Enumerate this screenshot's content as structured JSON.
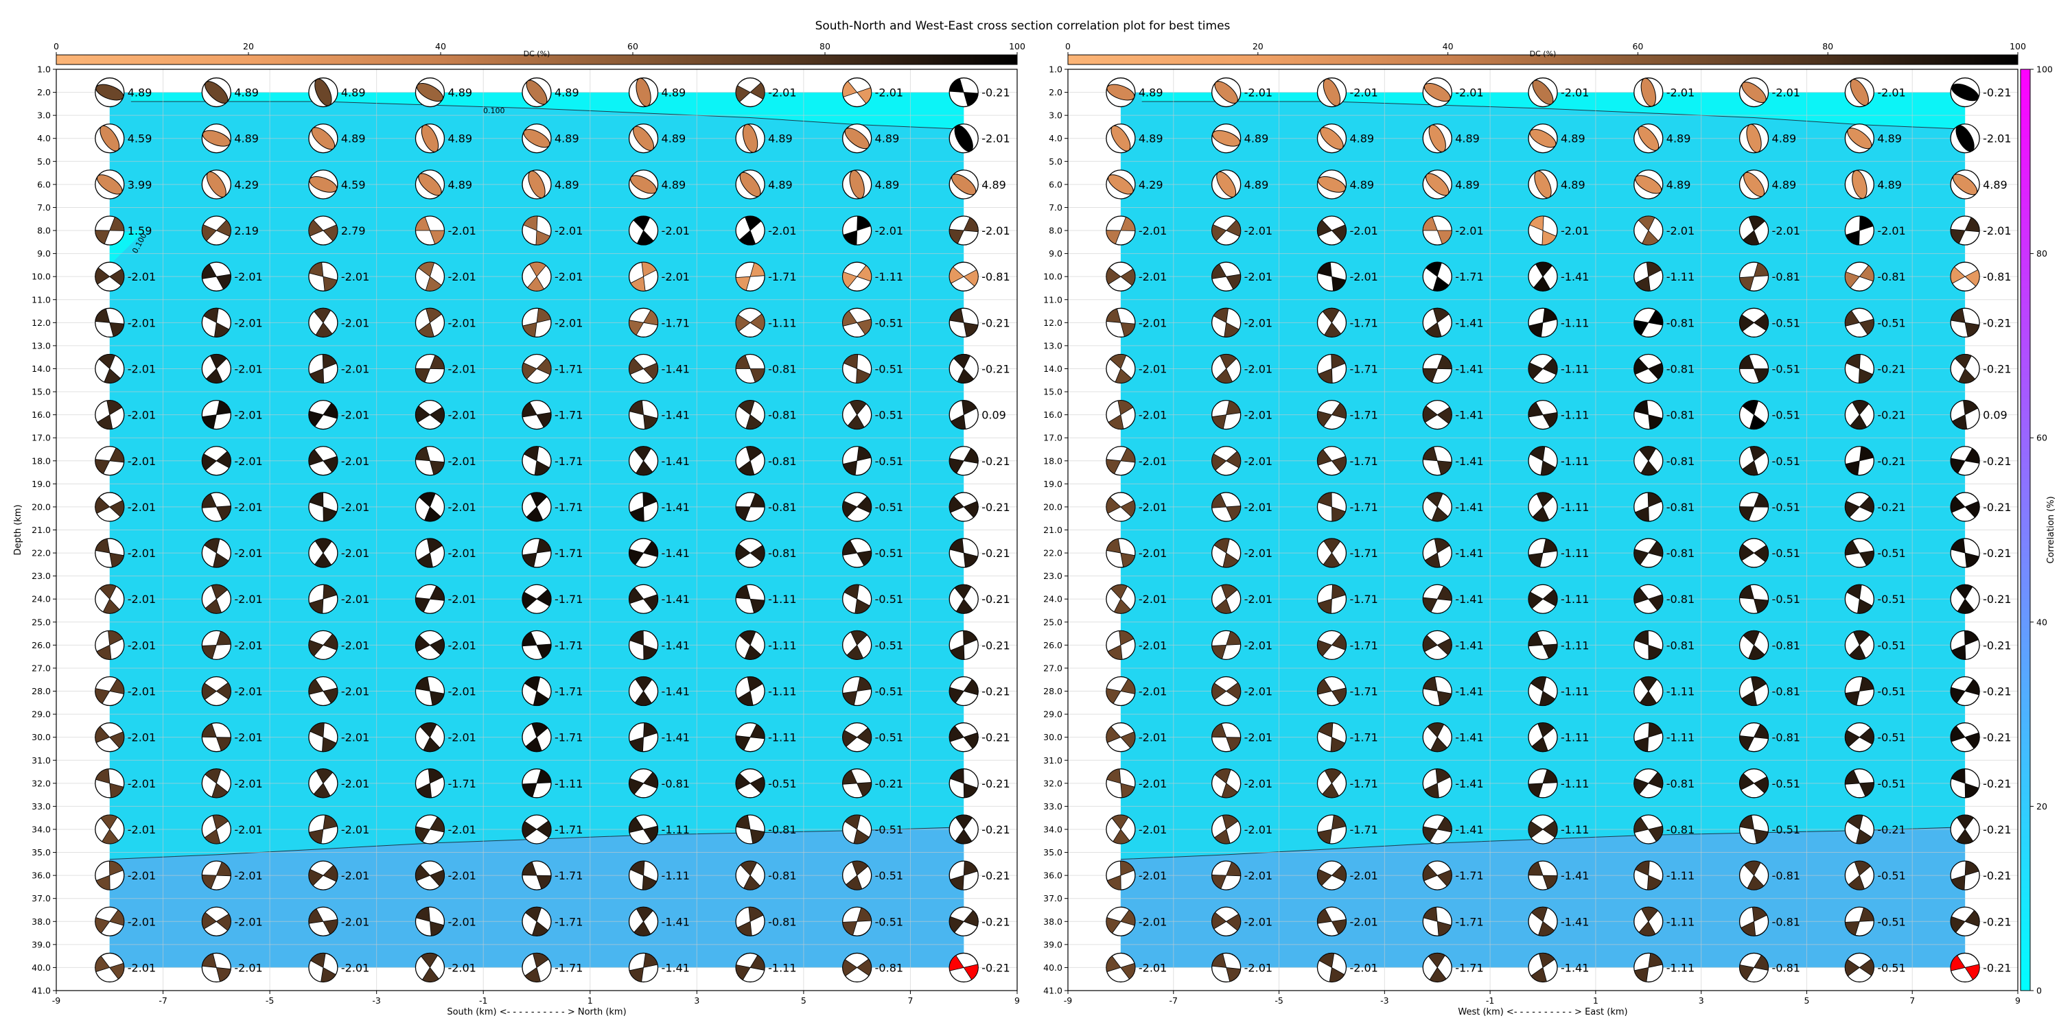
{
  "title": "South-North and West-East cross section correlation plot for best times",
  "colors": {
    "background_high": "#22d6f2",
    "background_low": "#4ab6f0",
    "background_top": "#0cf4f7",
    "grid": "#cccccc",
    "dc_cmap": [
      "#fbb476",
      "#f0a165",
      "#c9804e",
      "#8a5a35",
      "#4b311d",
      "#000000"
    ],
    "corr_cmap": [
      "#00ffff",
      "#ff00ff"
    ],
    "highlight_beachball": "#ff0000"
  },
  "chart_data": [
    {
      "type": "scatter",
      "panel": "south-north",
      "xlabel": "South (km) <- - - - - - - - - - > North (km)",
      "ylabel": "Depth (km)",
      "xlim": [
        -9,
        9
      ],
      "ylim": [
        41,
        1
      ],
      "x_ticks": [
        "-9",
        "-7",
        "-5",
        "-3",
        "-1",
        "1",
        "3",
        "5",
        "7",
        "9"
      ],
      "y_ticks": [
        "1.0",
        "2.0",
        "3.0",
        "4.0",
        "5.0",
        "6.0",
        "7.0",
        "8.0",
        "9.0",
        "10.0",
        "11.0",
        "12.0",
        "13.0",
        "14.0",
        "15.0",
        "16.0",
        "17.0",
        "18.0",
        "19.0",
        "20.0",
        "21.0",
        "22.0",
        "23.0",
        "24.0",
        "25.0",
        "26.0",
        "27.0",
        "28.0",
        "29.0",
        "30.0",
        "31.0",
        "32.0",
        "33.0",
        "34.0",
        "35.0",
        "36.0",
        "37.0",
        "38.0",
        "39.0",
        "40.0",
        "41.0"
      ],
      "x": [
        -8,
        -6,
        -4,
        -2,
        0,
        2,
        4,
        6,
        8
      ],
      "depths": [
        2,
        4,
        6,
        8,
        10,
        12,
        14,
        16,
        18,
        20,
        22,
        24,
        26,
        28,
        30,
        32,
        34,
        36,
        38,
        40
      ],
      "contour_labels": [
        "0.100",
        "0.100"
      ],
      "colorbar": {
        "label": "DC (%)",
        "ticks": [
          "0",
          "20",
          "40",
          "60",
          "80",
          "100"
        ]
      },
      "time_shift_labels": [
        [
          "4.89",
          "4.89",
          "4.89",
          "4.89",
          "4.89",
          "4.89",
          "-2.01",
          "-2.01",
          "-0.21"
        ],
        [
          "4.59",
          "4.89",
          "4.89",
          "4.89",
          "4.89",
          "4.89",
          "4.89",
          "4.89",
          "-2.01"
        ],
        [
          "3.99",
          "4.29",
          "4.59",
          "4.89",
          "4.89",
          "4.89",
          "4.89",
          "4.89",
          "4.89"
        ],
        [
          "1.59",
          "2.19",
          "2.79",
          "-2.01",
          "-2.01",
          "-2.01",
          "-2.01",
          "-2.01",
          "-2.01"
        ],
        [
          "-2.01",
          "-2.01",
          "-2.01",
          "-2.01",
          "-2.01",
          "-2.01",
          "-1.71",
          "-1.11",
          "-0.81"
        ],
        [
          "-2.01",
          "-2.01",
          "-2.01",
          "-2.01",
          "-2.01",
          "-1.71",
          "-1.11",
          "-0.51",
          "-0.21"
        ],
        [
          "-2.01",
          "-2.01",
          "-2.01",
          "-2.01",
          "-1.71",
          "-1.41",
          "-0.81",
          "-0.51",
          "-0.21"
        ],
        [
          "-2.01",
          "-2.01",
          "-2.01",
          "-2.01",
          "-1.71",
          "-1.41",
          "-0.81",
          "-0.51",
          "0.09"
        ],
        [
          "-2.01",
          "-2.01",
          "-2.01",
          "-2.01",
          "-1.71",
          "-1.41",
          "-0.81",
          "-0.51",
          "-0.21"
        ],
        [
          "-2.01",
          "-2.01",
          "-2.01",
          "-2.01",
          "-1.71",
          "-1.41",
          "-0.81",
          "-0.51",
          "-0.21"
        ],
        [
          "-2.01",
          "-2.01",
          "-2.01",
          "-2.01",
          "-1.71",
          "-1.41",
          "-0.81",
          "-0.51",
          "-0.21"
        ],
        [
          "-2.01",
          "-2.01",
          "-2.01",
          "-2.01",
          "-1.71",
          "-1.41",
          "-1.11",
          "-0.51",
          "-0.21"
        ],
        [
          "-2.01",
          "-2.01",
          "-2.01",
          "-2.01",
          "-1.71",
          "-1.41",
          "-1.11",
          "-0.51",
          "-0.21"
        ],
        [
          "-2.01",
          "-2.01",
          "-2.01",
          "-2.01",
          "-1.71",
          "-1.41",
          "-1.11",
          "-0.51",
          "-0.21"
        ],
        [
          "-2.01",
          "-2.01",
          "-2.01",
          "-2.01",
          "-1.71",
          "-1.41",
          "-1.11",
          "-0.51",
          "-0.21"
        ],
        [
          "-2.01",
          "-2.01",
          "-2.01",
          "-1.71",
          "-1.11",
          "-0.81",
          "-0.51",
          "-0.21",
          "-0.21"
        ],
        [
          "-2.01",
          "-2.01",
          "-2.01",
          "-2.01",
          "-1.71",
          "-1.11",
          "-0.81",
          "-0.51",
          "-0.21"
        ],
        [
          "-2.01",
          "-2.01",
          "-2.01",
          "-2.01",
          "-1.71",
          "-1.11",
          "-0.81",
          "-0.51",
          "-0.21"
        ],
        [
          "-2.01",
          "-2.01",
          "-2.01",
          "-2.01",
          "-1.71",
          "-1.41",
          "-0.81",
          "-0.51",
          "-0.21"
        ],
        [
          "-2.01",
          "-2.01",
          "-2.01",
          "-2.01",
          "-1.71",
          "-1.41",
          "-1.11",
          "-0.81",
          "-0.21"
        ]
      ],
      "dc_percent": [
        [
          70,
          70,
          70,
          55,
          45,
          40,
          70,
          25,
          100
        ],
        [
          35,
          35,
          35,
          35,
          35,
          35,
          35,
          35,
          100
        ],
        [
          35,
          35,
          35,
          35,
          35,
          35,
          35,
          35,
          35
        ],
        [
          70,
          70,
          70,
          40,
          50,
          100,
          100,
          100,
          75
        ],
        [
          80,
          90,
          70,
          55,
          40,
          30,
          25,
          25,
          25
        ],
        [
          85,
          85,
          80,
          70,
          65,
          55,
          60,
          60,
          85
        ],
        [
          85,
          90,
          85,
          80,
          70,
          75,
          75,
          75,
          90
        ],
        [
          85,
          95,
          95,
          90,
          90,
          85,
          85,
          85,
          90
        ],
        [
          80,
          90,
          90,
          85,
          90,
          90,
          90,
          90,
          90
        ],
        [
          80,
          85,
          90,
          95,
          95,
          95,
          90,
          90,
          90
        ],
        [
          80,
          85,
          90,
          90,
          90,
          95,
          90,
          90,
          90
        ],
        [
          75,
          80,
          85,
          90,
          95,
          90,
          90,
          85,
          90
        ],
        [
          75,
          80,
          85,
          90,
          95,
          90,
          90,
          85,
          90
        ],
        [
          75,
          80,
          85,
          90,
          95,
          90,
          90,
          85,
          90
        ],
        [
          75,
          80,
          85,
          90,
          95,
          90,
          90,
          85,
          90
        ],
        [
          75,
          80,
          85,
          90,
          95,
          90,
          90,
          85,
          90
        ],
        [
          70,
          75,
          80,
          85,
          90,
          90,
          85,
          80,
          90
        ],
        [
          70,
          75,
          80,
          85,
          85,
          85,
          80,
          80,
          85
        ],
        [
          70,
          75,
          80,
          85,
          85,
          85,
          80,
          75,
          85
        ],
        [
          70,
          75,
          80,
          80,
          80,
          80,
          80,
          75,
          0
        ]
      ]
    },
    {
      "type": "scatter",
      "panel": "west-east",
      "xlabel": "West (km) <- - - - - - - - - - > East (km)",
      "ylabel": "",
      "xlim": [
        -9,
        9
      ],
      "ylim": [
        41,
        1
      ],
      "x_ticks": [
        "-9",
        "-7",
        "-5",
        "-3",
        "-1",
        "1",
        "3",
        "5",
        "7",
        "9"
      ],
      "y_ticks": [
        "1.0",
        "2.0",
        "3.0",
        "4.0",
        "5.0",
        "6.0",
        "7.0",
        "8.0",
        "9.0",
        "10.0",
        "11.0",
        "12.0",
        "13.0",
        "14.0",
        "15.0",
        "16.0",
        "17.0",
        "18.0",
        "19.0",
        "20.0",
        "21.0",
        "22.0",
        "23.0",
        "24.0",
        "25.0",
        "26.0",
        "27.0",
        "28.0",
        "29.0",
        "30.0",
        "31.0",
        "32.0",
        "33.0",
        "34.0",
        "35.0",
        "36.0",
        "37.0",
        "38.0",
        "39.0",
        "40.0",
        "41.0"
      ],
      "x": [
        -8,
        -6,
        -4,
        -2,
        0,
        2,
        4,
        6,
        8
      ],
      "depths": [
        2,
        4,
        6,
        8,
        10,
        12,
        14,
        16,
        18,
        20,
        22,
        24,
        26,
        28,
        30,
        32,
        34,
        36,
        38,
        40
      ],
      "colorbar": {
        "label": "DC (%)",
        "ticks": [
          "0",
          "20",
          "40",
          "60",
          "80",
          "100"
        ]
      },
      "correlation_colorbar": {
        "label": "Correlation (%)",
        "ticks": [
          "0",
          "20",
          "40",
          "60",
          "80",
          "100"
        ]
      },
      "time_shift_labels": [
        [
          "4.89",
          "-2.01",
          "-2.01",
          "-2.01",
          "-2.01",
          "-2.01",
          "-2.01",
          "-2.01",
          "-0.21"
        ],
        [
          "4.89",
          "4.89",
          "4.89",
          "4.89",
          "4.89",
          "4.89",
          "4.89",
          "4.89",
          "-2.01"
        ],
        [
          "4.29",
          "4.89",
          "4.89",
          "4.89",
          "4.89",
          "4.89",
          "4.89",
          "4.89",
          "4.89"
        ],
        [
          "-2.01",
          "-2.01",
          "-2.01",
          "-2.01",
          "-2.01",
          "-2.01",
          "-2.01",
          "-2.01",
          "-2.01"
        ],
        [
          "-2.01",
          "-2.01",
          "-2.01",
          "-1.71",
          "-1.41",
          "-1.11",
          "-0.81",
          "-0.81",
          "-0.81"
        ],
        [
          "-2.01",
          "-2.01",
          "-1.71",
          "-1.41",
          "-1.11",
          "-0.81",
          "-0.51",
          "-0.51",
          "-0.21"
        ],
        [
          "-2.01",
          "-2.01",
          "-1.71",
          "-1.41",
          "-1.11",
          "-0.81",
          "-0.51",
          "-0.21",
          "-0.21"
        ],
        [
          "-2.01",
          "-2.01",
          "-1.71",
          "-1.41",
          "-1.11",
          "-0.81",
          "-0.51",
          "-0.21",
          "0.09"
        ],
        [
          "-2.01",
          "-2.01",
          "-1.71",
          "-1.41",
          "-1.11",
          "-0.81",
          "-0.51",
          "-0.21",
          "-0.21"
        ],
        [
          "-2.01",
          "-2.01",
          "-1.71",
          "-1.41",
          "-1.11",
          "-0.81",
          "-0.51",
          "-0.21",
          "-0.21"
        ],
        [
          "-2.01",
          "-2.01",
          "-1.71",
          "-1.41",
          "-1.11",
          "-0.81",
          "-0.51",
          "-0.51",
          "-0.21"
        ],
        [
          "-2.01",
          "-2.01",
          "-1.71",
          "-1.41",
          "-1.11",
          "-0.81",
          "-0.51",
          "-0.51",
          "-0.21"
        ],
        [
          "-2.01",
          "-2.01",
          "-1.71",
          "-1.41",
          "-1.11",
          "-0.81",
          "-0.81",
          "-0.51",
          "-0.21"
        ],
        [
          "-2.01",
          "-2.01",
          "-1.71",
          "-1.41",
          "-1.11",
          "-1.11",
          "-0.81",
          "-0.51",
          "-0.21"
        ],
        [
          "-2.01",
          "-2.01",
          "-1.71",
          "-1.41",
          "-1.11",
          "-1.11",
          "-0.81",
          "-0.51",
          "-0.21"
        ],
        [
          "-2.01",
          "-2.01",
          "-1.71",
          "-1.41",
          "-1.11",
          "-0.81",
          "-0.51",
          "-0.51",
          "-0.21"
        ],
        [
          "-2.01",
          "-2.01",
          "-1.71",
          "-1.41",
          "-1.11",
          "-0.81",
          "-0.51",
          "-0.21",
          "-0.21"
        ],
        [
          "-2.01",
          "-2.01",
          "-2.01",
          "-1.71",
          "-1.41",
          "-1.11",
          "-0.81",
          "-0.51",
          "-0.21"
        ],
        [
          "-2.01",
          "-2.01",
          "-2.01",
          "-1.71",
          "-1.41",
          "-1.11",
          "-0.81",
          "-0.51",
          "-0.21"
        ],
        [
          "-2.01",
          "-2.01",
          "-2.01",
          "-1.71",
          "-1.41",
          "-1.11",
          "-0.81",
          "-0.51",
          "-0.21"
        ]
      ],
      "dc_percent": [
        [
          35,
          35,
          35,
          35,
          45,
          35,
          35,
          35,
          100
        ],
        [
          30,
          30,
          30,
          30,
          30,
          30,
          30,
          30,
          100
        ],
        [
          30,
          30,
          30,
          30,
          30,
          30,
          30,
          30,
          30
        ],
        [
          45,
          70,
          85,
          40,
          25,
          60,
          90,
          100,
          85
        ],
        [
          70,
          80,
          95,
          100,
          95,
          85,
          70,
          45,
          25
        ],
        [
          70,
          75,
          80,
          85,
          95,
          100,
          90,
          80,
          85
        ],
        [
          70,
          75,
          80,
          85,
          90,
          95,
          90,
          85,
          85
        ],
        [
          70,
          75,
          80,
          85,
          90,
          95,
          100,
          90,
          90
        ],
        [
          70,
          75,
          80,
          85,
          90,
          90,
          90,
          95,
          95
        ],
        [
          70,
          75,
          80,
          85,
          90,
          90,
          90,
          90,
          95
        ],
        [
          70,
          75,
          80,
          85,
          90,
          90,
          90,
          90,
          95
        ],
        [
          70,
          75,
          80,
          85,
          90,
          90,
          90,
          90,
          95
        ],
        [
          70,
          75,
          80,
          85,
          90,
          90,
          90,
          90,
          95
        ],
        [
          70,
          75,
          80,
          85,
          90,
          90,
          90,
          90,
          95
        ],
        [
          70,
          75,
          80,
          85,
          90,
          90,
          90,
          90,
          95
        ],
        [
          70,
          75,
          80,
          85,
          90,
          90,
          90,
          90,
          95
        ],
        [
          70,
          75,
          80,
          85,
          85,
          85,
          85,
          85,
          90
        ],
        [
          70,
          75,
          80,
          80,
          80,
          80,
          80,
          80,
          85
        ],
        [
          70,
          75,
          80,
          80,
          80,
          80,
          80,
          80,
          85
        ],
        [
          70,
          75,
          80,
          80,
          80,
          80,
          80,
          80,
          0
        ]
      ]
    }
  ]
}
